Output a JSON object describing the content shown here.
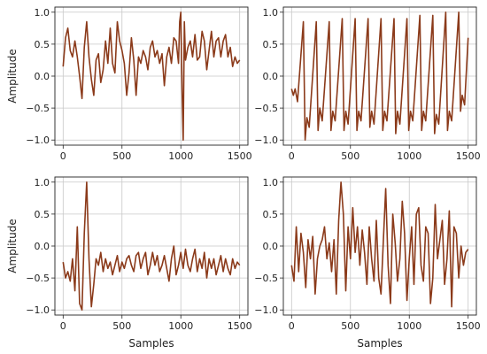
{
  "chart_data": [
    {
      "type": "line",
      "panel": "top-left",
      "ylabel": "Amplitude",
      "xlabel": "",
      "xlim": [
        -70,
        1570
      ],
      "ylim": [
        -1.08,
        1.08
      ],
      "xticks": [
        0,
        500,
        1000,
        1500
      ],
      "yticks": [
        -1.0,
        -0.5,
        0.0,
        0.5,
        1.0
      ],
      "grid": true,
      "series": [
        {
          "color": "#8b3a1a",
          "x": [
            0,
            20,
            40,
            60,
            80,
            100,
            120,
            140,
            160,
            180,
            200,
            220,
            240,
            260,
            280,
            300,
            320,
            340,
            360,
            380,
            400,
            420,
            440,
            460,
            480,
            500,
            520,
            540,
            560,
            580,
            600,
            620,
            640,
            660,
            680,
            700,
            720,
            740,
            760,
            780,
            800,
            820,
            840,
            860,
            880,
            900,
            920,
            940,
            960,
            980,
            990,
            1000,
            1010,
            1020,
            1030,
            1040,
            1060,
            1080,
            1100,
            1120,
            1140,
            1160,
            1180,
            1200,
            1220,
            1240,
            1260,
            1280,
            1300,
            1320,
            1340,
            1360,
            1380,
            1400,
            1420,
            1440,
            1460,
            1480,
            1500
          ],
          "y": [
            0.15,
            0.6,
            0.75,
            0.4,
            0.3,
            0.55,
            0.3,
            0.0,
            -0.35,
            0.45,
            0.85,
            0.3,
            -0.05,
            -0.3,
            0.25,
            0.35,
            -0.1,
            0.1,
            0.55,
            0.2,
            0.75,
            0.2,
            0.05,
            0.85,
            0.55,
            0.4,
            0.2,
            -0.3,
            0.05,
            0.6,
            0.25,
            -0.3,
            0.3,
            0.2,
            0.4,
            0.3,
            0.1,
            0.45,
            0.55,
            0.3,
            0.4,
            0.2,
            0.35,
            -0.15,
            0.3,
            0.45,
            0.2,
            0.6,
            0.55,
            0.2,
            0.85,
            1.0,
            -0.2,
            -1.0,
            0.85,
            0.25,
            0.45,
            0.55,
            0.3,
            0.65,
            0.25,
            0.3,
            0.7,
            0.55,
            0.1,
            0.4,
            0.7,
            0.3,
            0.55,
            0.6,
            0.3,
            0.55,
            0.65,
            0.3,
            0.45,
            0.15,
            0.3,
            0.2,
            0.25
          ]
        }
      ]
    },
    {
      "type": "line",
      "panel": "top-right",
      "ylabel": "",
      "xlabel": "",
      "xlim": [
        -70,
        1570
      ],
      "ylim": [
        -1.08,
        1.08
      ],
      "xticks": [
        0,
        500,
        1000,
        1500
      ],
      "yticks": [
        -1.0,
        -0.5,
        0.0,
        0.5,
        1.0
      ],
      "grid": true,
      "series": [
        {
          "color": "#8b3a1a",
          "x": [
            0,
            15,
            30,
            50,
            100,
            115,
            130,
            150,
            210,
            225,
            240,
            260,
            320,
            335,
            350,
            370,
            430,
            445,
            460,
            480,
            540,
            555,
            570,
            590,
            650,
            665,
            680,
            700,
            760,
            775,
            790,
            810,
            870,
            885,
            900,
            920,
            980,
            995,
            1010,
            1030,
            1090,
            1105,
            1120,
            1140,
            1200,
            1215,
            1230,
            1250,
            1310,
            1325,
            1340,
            1360,
            1420,
            1435,
            1450,
            1470,
            1500
          ],
          "y": [
            -0.2,
            -0.3,
            -0.2,
            -0.4,
            0.85,
            -1.0,
            -0.65,
            -0.8,
            0.85,
            -0.85,
            -0.5,
            -0.7,
            0.85,
            -0.85,
            -0.55,
            -0.7,
            0.9,
            -0.85,
            -0.55,
            -0.75,
            0.9,
            -0.85,
            -0.55,
            -0.7,
            0.9,
            -0.8,
            -0.55,
            -0.75,
            0.9,
            -0.85,
            -0.55,
            -0.7,
            0.9,
            -0.9,
            -0.55,
            -0.75,
            0.9,
            -0.85,
            -0.55,
            -0.7,
            0.95,
            -0.85,
            -0.55,
            -0.7,
            0.95,
            -0.9,
            -0.6,
            -0.75,
            1.0,
            -0.85,
            -0.55,
            -0.7,
            1.0,
            -0.55,
            -0.3,
            -0.45,
            0.6
          ]
        }
      ]
    },
    {
      "type": "line",
      "panel": "bottom-left",
      "ylabel": "Amplitude",
      "xlabel": "Samples",
      "xlim": [
        -70,
        1570
      ],
      "ylim": [
        -1.08,
        1.08
      ],
      "xticks": [
        0,
        500,
        1000,
        1500
      ],
      "yticks": [
        -1.0,
        -0.5,
        0.0,
        0.5,
        1.0
      ],
      "grid": true,
      "series": [
        {
          "color": "#8b3a1a",
          "x": [
            0,
            20,
            40,
            60,
            80,
            100,
            120,
            140,
            160,
            180,
            200,
            220,
            240,
            260,
            280,
            300,
            320,
            340,
            360,
            380,
            400,
            420,
            440,
            460,
            480,
            500,
            520,
            540,
            560,
            580,
            600,
            620,
            640,
            660,
            680,
            700,
            720,
            740,
            760,
            780,
            800,
            820,
            840,
            860,
            880,
            900,
            920,
            940,
            960,
            980,
            1000,
            1020,
            1040,
            1060,
            1080,
            1100,
            1120,
            1140,
            1160,
            1180,
            1200,
            1220,
            1240,
            1260,
            1280,
            1300,
            1320,
            1340,
            1360,
            1380,
            1400,
            1420,
            1440,
            1460,
            1480,
            1500
          ],
          "y": [
            -0.25,
            -0.5,
            -0.4,
            -0.55,
            -0.2,
            -0.7,
            0.3,
            -0.9,
            -1.0,
            0.2,
            1.0,
            -0.2,
            -0.95,
            -0.6,
            -0.2,
            -0.3,
            -0.1,
            -0.4,
            -0.2,
            -0.35,
            -0.25,
            -0.45,
            -0.3,
            -0.15,
            -0.4,
            -0.25,
            -0.35,
            -0.2,
            -0.15,
            -0.3,
            -0.4,
            -0.15,
            -0.1,
            -0.35,
            -0.2,
            -0.1,
            -0.45,
            -0.3,
            -0.1,
            -0.3,
            -0.15,
            -0.4,
            -0.3,
            -0.15,
            -0.35,
            -0.55,
            -0.2,
            0.0,
            -0.45,
            -0.3,
            -0.1,
            -0.35,
            -0.05,
            -0.3,
            -0.4,
            -0.2,
            -0.05,
            -0.4,
            -0.2,
            -0.35,
            -0.1,
            -0.5,
            -0.2,
            -0.35,
            -0.2,
            -0.45,
            -0.3,
            -0.15,
            -0.4,
            -0.2,
            -0.35,
            -0.45,
            -0.2,
            -0.35,
            -0.25,
            -0.3
          ]
        }
      ]
    },
    {
      "type": "line",
      "panel": "bottom-right",
      "ylabel": "",
      "xlabel": "Samples",
      "xlim": [
        -70,
        1570
      ],
      "ylim": [
        -1.08,
        1.08
      ],
      "xticks": [
        0,
        500,
        1000,
        1500
      ],
      "yticks": [
        -1.0,
        -0.5,
        0.0,
        0.5,
        1.0
      ],
      "grid": true,
      "series": [
        {
          "color": "#8b3a1a",
          "x": [
            0,
            20,
            40,
            60,
            80,
            100,
            120,
            140,
            160,
            180,
            200,
            220,
            240,
            260,
            280,
            300,
            320,
            340,
            360,
            380,
            400,
            420,
            440,
            460,
            480,
            500,
            520,
            540,
            560,
            580,
            600,
            620,
            640,
            660,
            680,
            700,
            720,
            740,
            760,
            780,
            800,
            820,
            840,
            860,
            880,
            900,
            920,
            940,
            960,
            980,
            1000,
            1020,
            1040,
            1060,
            1080,
            1100,
            1120,
            1140,
            1160,
            1180,
            1200,
            1220,
            1240,
            1260,
            1280,
            1300,
            1320,
            1340,
            1360,
            1380,
            1400,
            1420,
            1440,
            1460,
            1480,
            1500
          ],
          "y": [
            -0.3,
            -0.55,
            0.3,
            -0.4,
            0.2,
            -0.1,
            -0.65,
            0.1,
            -0.2,
            0.15,
            -0.75,
            -0.2,
            0.0,
            0.1,
            0.3,
            -0.2,
            0.05,
            -0.4,
            0.1,
            -0.75,
            0.4,
            1.0,
            0.5,
            -0.7,
            0.3,
            -0.2,
            0.6,
            -0.1,
            0.3,
            -0.3,
            0.25,
            -0.1,
            -0.6,
            0.3,
            -0.2,
            -0.55,
            0.4,
            -0.5,
            -0.75,
            0.1,
            0.9,
            -0.3,
            -0.9,
            0.5,
            0.05,
            -0.55,
            -0.2,
            0.7,
            0.2,
            -0.85,
            -0.2,
            0.3,
            -0.6,
            0.5,
            0.6,
            -0.3,
            -0.55,
            0.3,
            0.2,
            -0.9,
            -0.5,
            0.65,
            -0.2,
            0.1,
            0.4,
            -0.6,
            -0.2,
            0.55,
            -0.95,
            0.3,
            0.2,
            -0.5,
            0.0,
            -0.3,
            -0.1,
            -0.05
          ]
        }
      ]
    }
  ]
}
